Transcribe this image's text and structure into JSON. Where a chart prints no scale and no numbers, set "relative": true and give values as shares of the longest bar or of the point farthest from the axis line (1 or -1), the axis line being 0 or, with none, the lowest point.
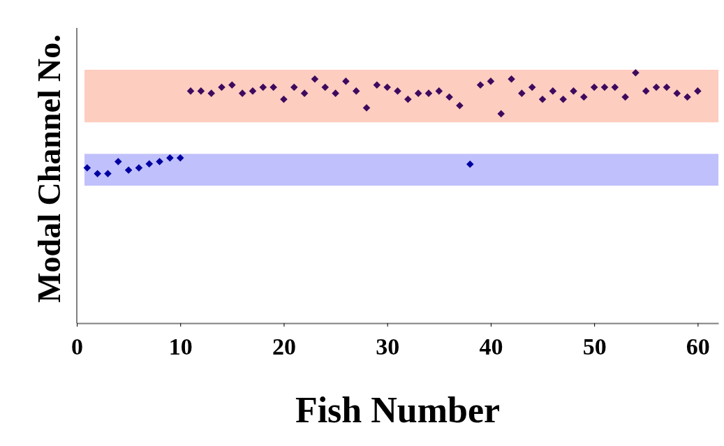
{
  "chart_data": {
    "type": "scatter",
    "xlabel": "Fish Number",
    "ylabel": "Modal Channel No.",
    "relative": true,
    "marker": "diamond",
    "xlim": [
      0,
      62
    ],
    "xticks": [
      0,
      10,
      20,
      30,
      40,
      50,
      60
    ],
    "series": [
      {
        "color": "#0000a0",
        "x": [
          1,
          2,
          3,
          4,
          5,
          6,
          7,
          8,
          9,
          10,
          38
        ],
        "values": [
          0.62,
          0.597,
          0.597,
          0.645,
          0.611,
          0.62,
          0.636,
          0.645,
          0.66,
          0.66,
          0.635
        ]
      },
      {
        "color": "#3e0a5e",
        "x": [
          11,
          12,
          13,
          14,
          15,
          16,
          17,
          18,
          19,
          20,
          21,
          22,
          23,
          24,
          25,
          26,
          27,
          28,
          29,
          30,
          31,
          32,
          33,
          34,
          35,
          36,
          37,
          39,
          40,
          41,
          42,
          43,
          44,
          45,
          46,
          47,
          48,
          49,
          50,
          51,
          52,
          53,
          54,
          55,
          56,
          57,
          58,
          59,
          60
        ],
        "values": [
          0.927,
          0.927,
          0.918,
          0.942,
          0.951,
          0.918,
          0.927,
          0.942,
          0.942,
          0.894,
          0.942,
          0.918,
          0.975,
          0.942,
          0.918,
          0.966,
          0.927,
          0.86,
          0.951,
          0.942,
          0.927,
          0.894,
          0.918,
          0.918,
          0.927,
          0.903,
          0.869,
          0.951,
          0.966,
          0.836,
          0.975,
          0.918,
          0.942,
          0.894,
          0.927,
          0.894,
          0.927,
          0.903,
          0.942,
          0.942,
          0.942,
          0.903,
          1,
          0.927,
          0.942,
          0.942,
          0.918,
          0.903,
          0.927
        ]
      }
    ],
    "bands": [
      {
        "axis": "y",
        "from": 0.549,
        "to": 0.676,
        "color": "#c0c0fc"
      },
      {
        "axis": "y",
        "from": 0.802,
        "to": 1.012,
        "color": "#fdcdc0"
      }
    ]
  }
}
